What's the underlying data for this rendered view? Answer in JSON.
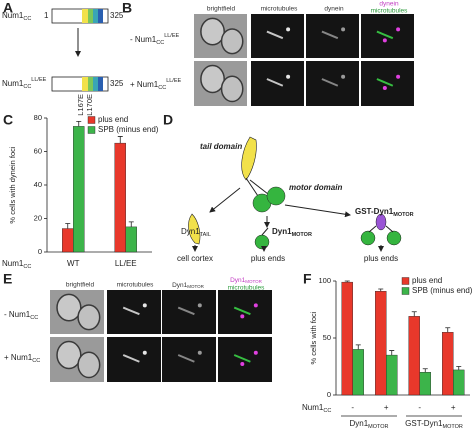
{
  "panels": {
    "A": {
      "label": "A",
      "construct1": {
        "name": "Num1",
        "sub": "CC",
        "start": "1",
        "end": "325"
      },
      "construct2": {
        "name": "Num1",
        "sub": "CC",
        "sup": "LL/EE",
        "end": "325",
        "mutations": [
          "L167E",
          "L170E"
        ]
      }
    },
    "B": {
      "label": "B",
      "columns": [
        "brightfield",
        "microtubules",
        "dynein"
      ],
      "merge": {
        "top": "dynein",
        "bottom": "microtubules"
      },
      "rows": [
        {
          "prefix": "- Num1",
          "sub": "CC",
          "sup": "LL/EE"
        },
        {
          "prefix": "+ Num1",
          "sub": "CC",
          "sup": "LL/EE"
        }
      ]
    },
    "C": {
      "label": "C"
    },
    "D": {
      "label": "D",
      "tail_domain": "tail domain",
      "motor_domain": "motor domain",
      "tail": {
        "base": "Dyn1",
        "sub": "TAIL"
      },
      "motor": {
        "base": "Dyn1",
        "sub": "MOTOR"
      },
      "gst": {
        "base": "GST-Dyn1",
        "sub": "MOTOR"
      },
      "outcomes": [
        "cell cortex",
        "plus ends",
        "plus ends"
      ]
    },
    "E": {
      "label": "E",
      "columns": [
        "brightfield",
        "microtubules"
      ],
      "dyn": {
        "base": "Dyn1",
        "sub": "MOTOR"
      },
      "merge": {
        "base": "Dyn1",
        "sub": "MOTOR",
        "bottom": "microtubules"
      },
      "rows": [
        {
          "prefix": "- Num1",
          "sub": "CC"
        },
        {
          "prefix": "+ Num1",
          "sub": "CC"
        }
      ]
    },
    "F": {
      "label": "F"
    }
  },
  "chart_data": [
    {
      "type": "bar",
      "y_label": "% cells with dynein foci",
      "categories": [
        "WT",
        "LL/EE"
      ],
      "category_label": {
        "base": "Num1",
        "sub": "CC"
      },
      "series": [
        {
          "name": "plus end",
          "color": "#e8382b",
          "values": [
            14,
            65
          ],
          "errors": [
            3,
            4
          ]
        },
        {
          "name": "SPB (minus end)",
          "color": "#3cb44a",
          "values": [
            75,
            15
          ],
          "errors": [
            3,
            3
          ]
        }
      ],
      "ylim": [
        0,
        80
      ],
      "yticks": [
        0,
        20,
        40,
        60,
        80
      ]
    },
    {
      "type": "bar",
      "y_label": "% cells with foci",
      "categories": [
        "-",
        "+",
        "-",
        "+"
      ],
      "category_label": {
        "base": "Num1",
        "sub": "CC"
      },
      "groups": [
        {
          "base": "Dyn1",
          "sub": "MOTOR"
        },
        {
          "base": "GST-Dyn1",
          "sub": "MOTOR"
        }
      ],
      "series": [
        {
          "name": "plus end",
          "color": "#e8382b",
          "values": [
            99,
            91,
            69,
            55
          ],
          "errors": [
            1,
            2,
            4,
            4
          ]
        },
        {
          "name": "SPB (minus end)",
          "color": "#3cb44a",
          "values": [
            40,
            35,
            20,
            22
          ],
          "errors": [
            4,
            4,
            3,
            3
          ]
        }
      ],
      "ylim": [
        0,
        100
      ],
      "yticks": [
        0,
        50,
        100
      ]
    }
  ]
}
